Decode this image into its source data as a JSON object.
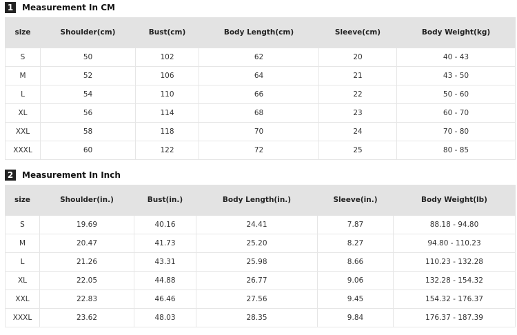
{
  "cm": {
    "num": "1",
    "title": "Measurement In CM",
    "headers": [
      "size",
      "Shoulder(cm)",
      "Bust(cm)",
      "Body Length(cm)",
      "Sleeve(cm)",
      "Body Weight(kg)"
    ],
    "rows": [
      [
        "S",
        "50",
        "102",
        "62",
        "20",
        "40 - 43"
      ],
      [
        "M",
        "52",
        "106",
        "64",
        "21",
        "43 - 50"
      ],
      [
        "L",
        "54",
        "110",
        "66",
        "22",
        "50 - 60"
      ],
      [
        "XL",
        "56",
        "114",
        "68",
        "23",
        "60 - 70"
      ],
      [
        "XXL",
        "58",
        "118",
        "70",
        "24",
        "70 - 80"
      ],
      [
        "XXXL",
        "60",
        "122",
        "72",
        "25",
        "80 - 85"
      ]
    ]
  },
  "inch": {
    "num": "2",
    "title": "Measurement In Inch",
    "headers": [
      "size",
      "Shoulder(in.)",
      "Bust(in.)",
      "Body Length(in.)",
      "Sleeve(in.)",
      "Body Weight(lb)"
    ],
    "rows": [
      [
        "S",
        "19.69",
        "40.16",
        "24.41",
        "7.87",
        "88.18 - 94.80"
      ],
      [
        "M",
        "20.47",
        "41.73",
        "25.20",
        "8.27",
        "94.80 - 110.23"
      ],
      [
        "L",
        "21.26",
        "43.31",
        "25.98",
        "8.66",
        "110.23 - 132.28"
      ],
      [
        "XL",
        "22.05",
        "44.88",
        "26.77",
        "9.06",
        "132.28 - 154.32"
      ],
      [
        "XXL",
        "22.83",
        "46.46",
        "27.56",
        "9.45",
        "154.32 - 176.37"
      ],
      [
        "XXXL",
        "23.62",
        "48.03",
        "28.35",
        "9.84",
        "176.37 - 187.39"
      ]
    ]
  }
}
